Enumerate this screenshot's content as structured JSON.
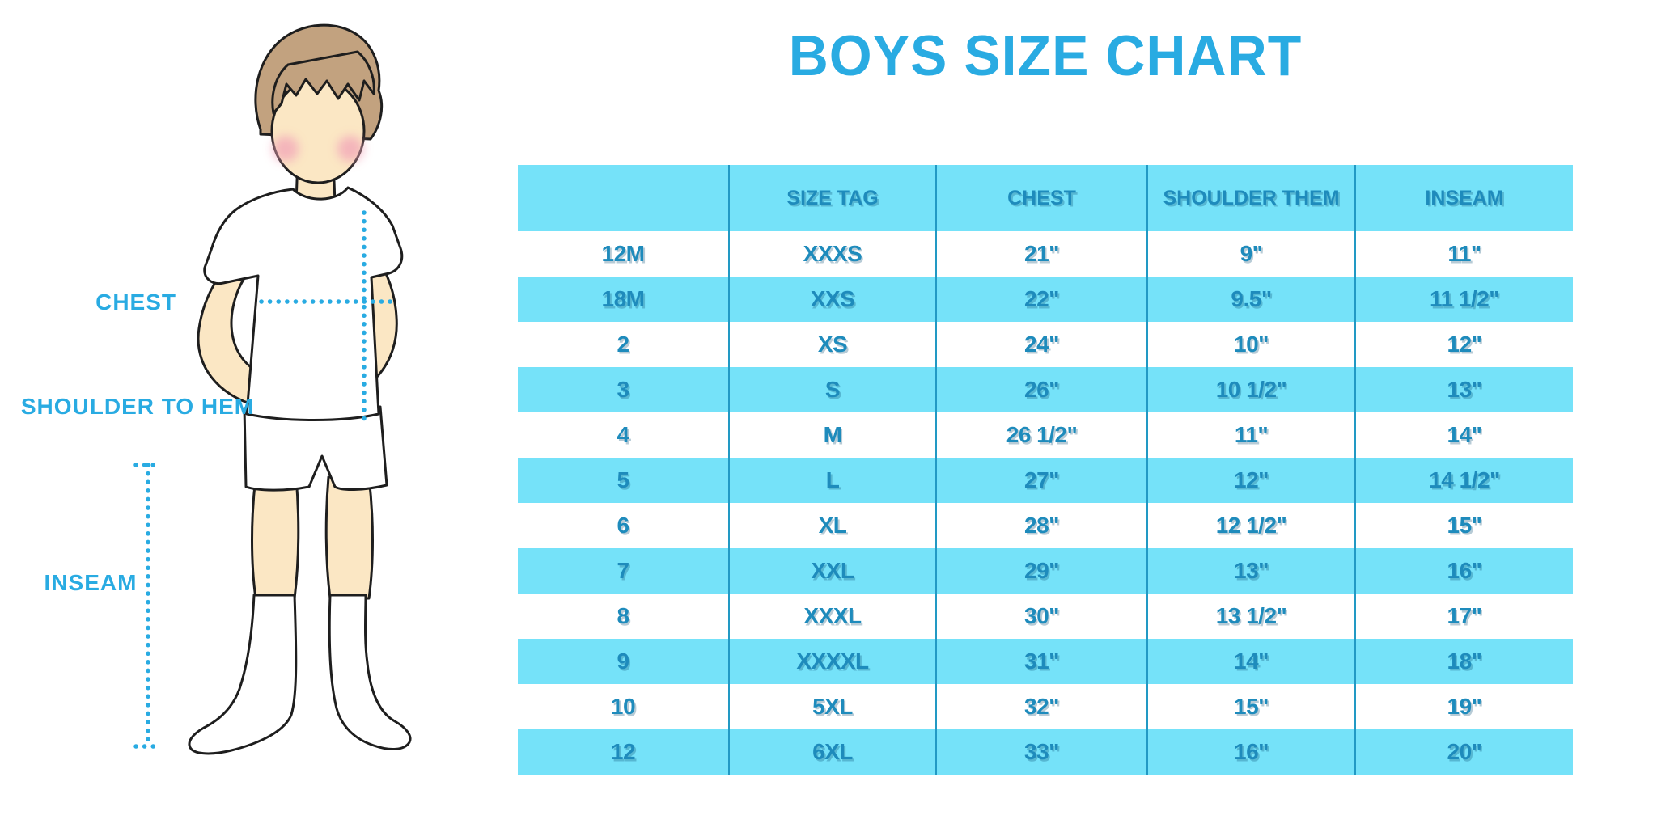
{
  "title": "BOYS SIZE CHART",
  "figure": {
    "labels": {
      "chest": "CHEST",
      "shoulder_to_hem": "SHOULDER TO HEM",
      "inseam": "INSEAM"
    }
  },
  "chart_data": {
    "type": "table",
    "title": "BOYS SIZE CHART",
    "columns": [
      "",
      "SIZE TAG",
      "CHEST",
      "SHOULDER THEM",
      "INSEAM"
    ],
    "rows": [
      [
        "12M",
        "XXXS",
        "21\"",
        "9\"",
        "11\""
      ],
      [
        "18M",
        "XXS",
        "22\"",
        "9.5\"",
        "11 1/2\""
      ],
      [
        "2",
        "XS",
        "24\"",
        "10\"",
        "12\""
      ],
      [
        "3",
        "S",
        "26\"",
        "10 1/2\"",
        "13\""
      ],
      [
        "4",
        "M",
        "26 1/2\"",
        "11\"",
        "14\""
      ],
      [
        "5",
        "L",
        "27\"",
        "12\"",
        "14 1/2\""
      ],
      [
        "6",
        "XL",
        "28\"",
        "12 1/2\"",
        "15\""
      ],
      [
        "7",
        "XXL",
        "29\"",
        "13\"",
        "16\""
      ],
      [
        "8",
        "XXXL",
        "30\"",
        "13 1/2\"",
        "17\""
      ],
      [
        "9",
        "XXXXL",
        "31\"",
        "14\"",
        "18\""
      ],
      [
        "10",
        "5XL",
        "32\"",
        "15\"",
        "19\""
      ],
      [
        "12",
        "6XL",
        "33\"",
        "16\"",
        "20\""
      ]
    ],
    "layout": {
      "row_striping": "alternating white / cyan, header cyan",
      "legend": "none",
      "grid": "vertical column dividers only"
    }
  },
  "colors": {
    "accent_blue": "#29ABE2",
    "row_cyan": "#75E2F9",
    "divider_blue": "#2299C4",
    "table_text": "#1E8BBC",
    "skin": "#FBE7C4",
    "hair": "#C2A27F",
    "cheek": "#F2A4B8",
    "outline": "#1E1E1E"
  }
}
